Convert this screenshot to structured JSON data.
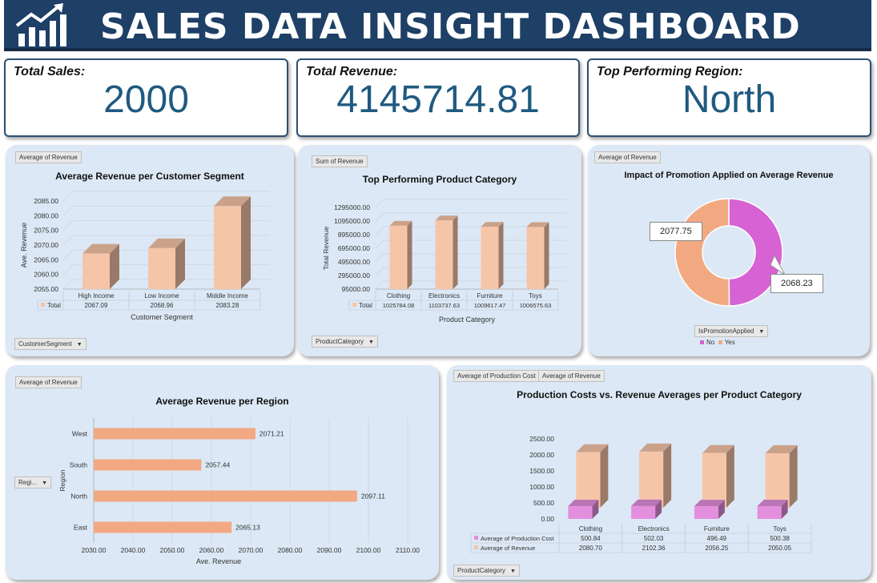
{
  "header": {
    "title": "SALES DATA INSIGHT DASHBOARD",
    "logo_icon": "growth-chart-icon"
  },
  "kpis": [
    {
      "label": "Total Sales:",
      "value": "2000"
    },
    {
      "label": "Total Revenue:",
      "value": "4145714.81"
    },
    {
      "label": "Top Performing Region:",
      "value": "North"
    }
  ],
  "colors": {
    "header_bg": "#1e3f66",
    "kpi_value": "#1f5a80",
    "panel_bg": "#dce8f5",
    "bar_peach": "#f6c5a8",
    "bar_salmon": "#f2a982",
    "bar_pink": "#e38fde",
    "donut_pink": "#d662d3"
  },
  "panels": {
    "segment": {
      "tag": "Average of Revenue",
      "filter": "CustomerSegment",
      "chart_data": {
        "type": "bar",
        "title": "Average Revenue per Customer Segment",
        "xlabel": "Customer Segment",
        "ylabel": "Ave. Revenue",
        "categories": [
          "High Income",
          "Low Income",
          "Middle Income"
        ],
        "series": [
          {
            "name": "Total",
            "values": [
              2067.09,
              2068.96,
              2083.28
            ]
          }
        ],
        "value_labels": [
          "2067.09",
          "2068.96",
          "2083.28"
        ],
        "yticks": [
          "2055.00",
          "2060.00",
          "2065.00",
          "2070.00",
          "2075.00",
          "2080.00",
          "2085.00"
        ],
        "ylim": [
          2055,
          2085
        ]
      }
    },
    "category": {
      "tag": "Sum of Revenue",
      "filter": "ProductCategory",
      "chart_data": {
        "type": "bar",
        "title": "Top Performing Product Category",
        "xlabel": "Product Category",
        "ylabel": "Total Revenue",
        "categories": [
          "Clothing",
          "Electronics",
          "Furniture",
          "Toys"
        ],
        "series": [
          {
            "name": "Total",
            "values": [
              1025784.08,
              1103737.63,
              1009617.47,
              1006575.63
            ]
          }
        ],
        "value_labels": [
          "1025784.08",
          "1103737.63",
          "1009617.47",
          "1006575.63"
        ],
        "yticks": [
          "95000.00",
          "295000.00",
          "495000.00",
          "695000.00",
          "895000.00",
          "1095000.00",
          "1295000.00"
        ],
        "ylim": [
          95000,
          1295000
        ]
      }
    },
    "promotion": {
      "tag": "Average of Revenue",
      "filter": "IsPromotionApplied",
      "chart_data": {
        "type": "pie",
        "title": "Impact of Promotion Applied on Average Revenue",
        "categories": [
          "No",
          "Yes"
        ],
        "values": [
          2068.23,
          2077.75
        ],
        "value_labels": [
          "2068.23",
          "2077.75"
        ],
        "legend": "bottom"
      }
    },
    "region": {
      "tag": "Average of Revenue",
      "filter": "Regi...",
      "chart_data": {
        "type": "bar",
        "orientation": "horizontal",
        "title": "Average Revenue per Region",
        "xlabel": "Ave. Revenue",
        "ylabel": "Region",
        "categories": [
          "West",
          "South",
          "North",
          "East"
        ],
        "values": [
          2071.21,
          2057.44,
          2097.11,
          2065.13
        ],
        "value_labels": [
          "2071.21",
          "2057.44",
          "2097.11",
          "2065.13"
        ],
        "xticks": [
          "2030.00",
          "2040.00",
          "2050.00",
          "2060.00",
          "2070.00",
          "2080.00",
          "2090.00",
          "2100.00",
          "2110.00"
        ],
        "xlim": [
          2030,
          2110
        ],
        "grid": true
      }
    },
    "production": {
      "tags": [
        "Average of Production Cost",
        "Average of Revenue"
      ],
      "filter": "ProductCategory",
      "chart_data": {
        "type": "bar",
        "title": "Production Costs vs. Revenue Averages per Product Category",
        "categories": [
          "Clothing",
          "Electronics",
          "Furniture",
          "Toys"
        ],
        "series": [
          {
            "name": "Average of Production Cost",
            "values": [
              500.84,
              502.03,
              496.49,
              500.38
            ],
            "labels": [
              "500.84",
              "502.03",
              "496.49",
              "500.38"
            ]
          },
          {
            "name": "Average of Revenue",
            "values": [
              2080.7,
              2102.36,
              2056.25,
              2050.05
            ],
            "labels": [
              "2080.70",
              "2102.36",
              "2056.25",
              "2050.05"
            ]
          }
        ],
        "yticks": [
          "0.00",
          "500.00",
          "1000.00",
          "1500.00",
          "2000.00",
          "2500.00"
        ],
        "ylim": [
          0,
          2500
        ]
      }
    }
  }
}
